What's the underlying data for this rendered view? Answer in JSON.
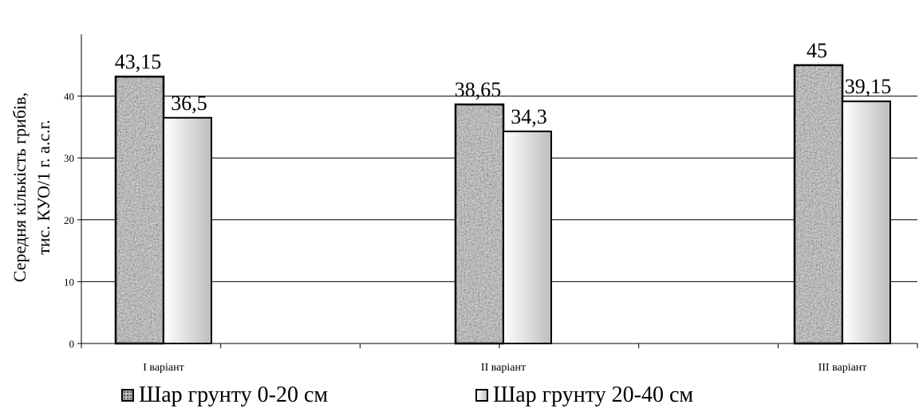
{
  "chart_data": {
    "type": "bar",
    "categories": [
      "I варіант",
      "II варіант",
      "III варіант"
    ],
    "series": [
      {
        "name": "Шар грунту 0-20 см",
        "values": [
          43.15,
          38.65,
          45
        ],
        "labels": [
          "43,15",
          "38,65",
          "45"
        ]
      },
      {
        "name": "Шар грунту 20-40 см",
        "values": [
          36.5,
          34.3,
          39.15
        ],
        "labels": [
          "36,5",
          "34,3",
          "39,15"
        ]
      }
    ],
    "ylabel_line1": "Середня кількість грибів,",
    "ylabel_line2": "тис. КУО/1 г. а.с.г.",
    "ylim": [
      0,
      50
    ],
    "yticks": [
      0,
      10,
      20,
      30,
      40
    ],
    "grid": true,
    "legend_position": "bottom"
  }
}
